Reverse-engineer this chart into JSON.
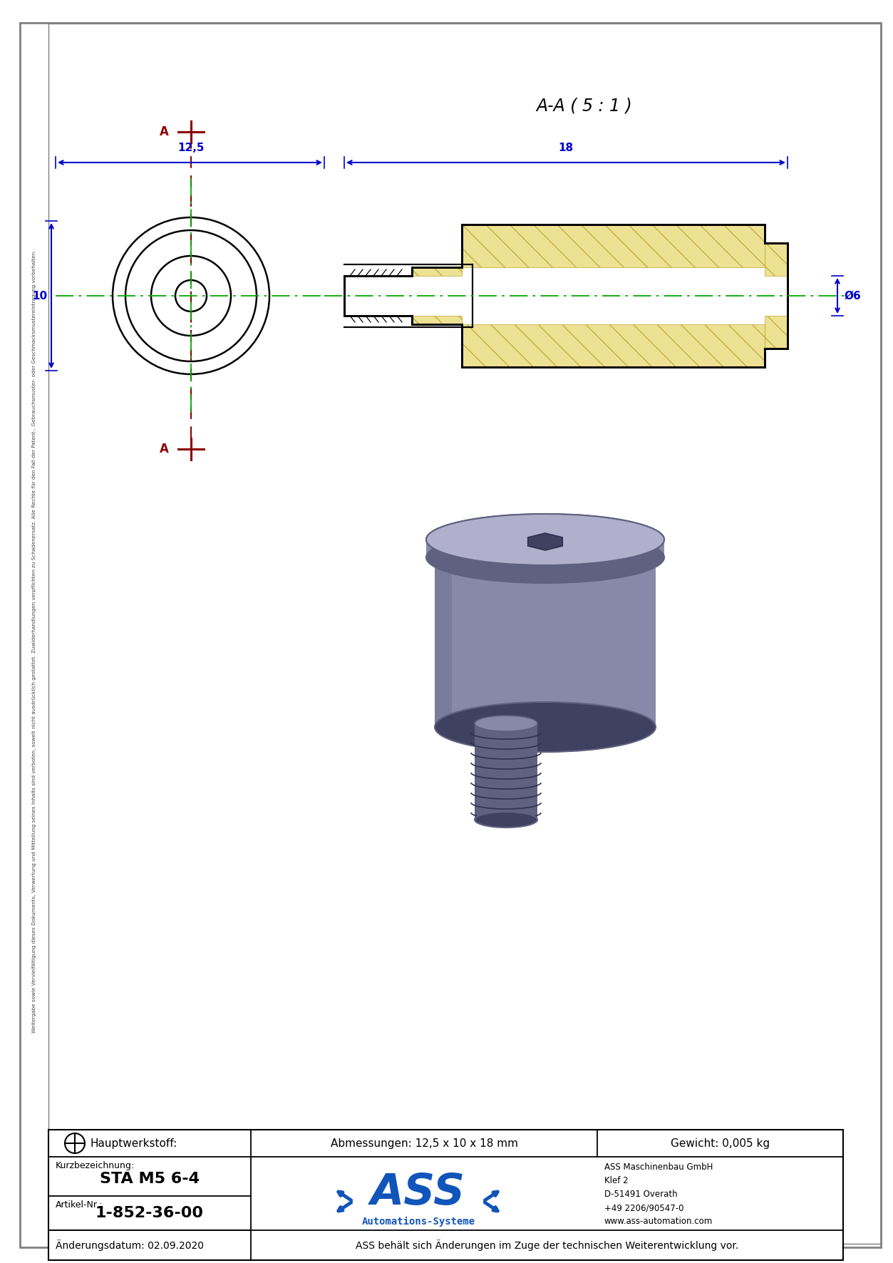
{
  "page_bg": "#ffffff",
  "border_color": "#808080",
  "draw_color": "#000000",
  "dim_color": "#0000cd",
  "centerline_color": "#00aa00",
  "section_color": "#8b0000",
  "title": "A-A ( 5 : 1 )",
  "dim_12_5": "12,5",
  "dim_18": "18",
  "dim_10": "10",
  "dim_d6": "Ø6",
  "table_texts": {
    "hauptwerkstoff_label": "Hauptwerkstoff:",
    "abmessungen": "Abmessungen: 12,5 x 10 x 18 mm",
    "gewicht": "Gewicht: 0,005 kg",
    "kurzbezeichnung_label": "Kurzbezeichnung:",
    "kurzbezeichnung": "STA M5 6-4",
    "artikel_label": "Artikel-Nr.:",
    "artikel": "1-852-36-00",
    "logo_sub": "Automations-Systeme",
    "company_name": "ASS Maschinenbau GmbH",
    "company_addr1": "Klef 2",
    "company_addr2": "D-51491 Overath",
    "company_phone": "+49 2206/90547-0",
    "company_web": "www.ass-automation.com",
    "aenderung_label": "Änderungsdatum: 02.09.2020",
    "aenderung_text": "ASS behält sich Änderungen im Zuge der technischen Weiterentwicklung vor."
  },
  "vertical_text": "Weitergabe sowie Vervielfältigung dieses Dokuments, Verwertung und Mitteilung seines Inhalts sind verboten, soweit nicht ausdrücklich gestattet. Zuwiderhandlungen verpflichten zu Schadenersatz. Alle Rechte für den Fall der Patent-, Gebrauchsmuster- oder Geschmacksmustereintragung vorbehalten."
}
